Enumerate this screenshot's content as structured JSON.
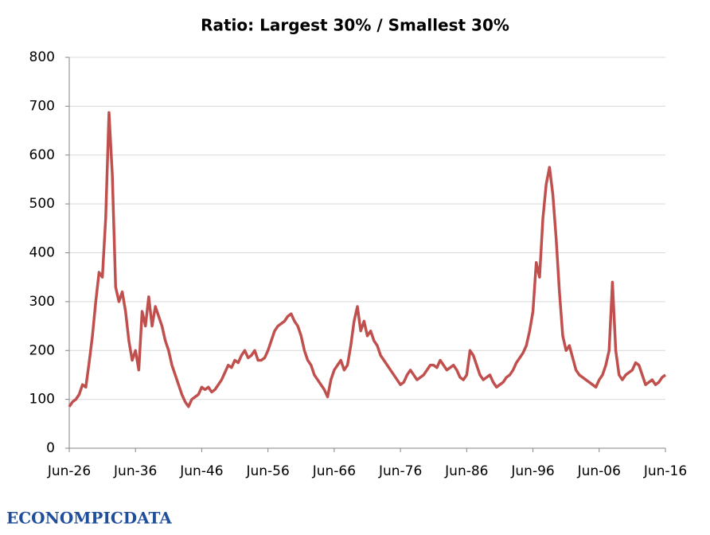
{
  "chart_data": {
    "type": "line",
    "title": "Ratio: Largest 30% / Smallest 30%",
    "watermark": "ECONOMPICDATA",
    "x": [
      "Jun-26",
      "Dec-26",
      "Jun-27",
      "Dec-27",
      "Jun-28",
      "Dec-28",
      "Jun-29",
      "Dec-29",
      "Jun-30",
      "Dec-30",
      "Jun-31",
      "Dec-31",
      "Jun-32",
      "Dec-32",
      "Jun-33",
      "Dec-33",
      "Jun-34",
      "Dec-34",
      "Jun-35",
      "Dec-35",
      "Jun-36",
      "Dec-36",
      "Jun-37",
      "Dec-37",
      "Jun-38",
      "Dec-38",
      "Jun-39",
      "Dec-39",
      "Jun-40",
      "Dec-40",
      "Jun-41",
      "Dec-41",
      "Jun-42",
      "Dec-42",
      "Jun-43",
      "Dec-43",
      "Jun-44",
      "Dec-44",
      "Jun-45",
      "Dec-45",
      "Jun-46",
      "Dec-46",
      "Jun-47",
      "Dec-47",
      "Jun-48",
      "Dec-48",
      "Jun-49",
      "Dec-49",
      "Jun-50",
      "Dec-50",
      "Jun-51",
      "Dec-51",
      "Jun-52",
      "Dec-52",
      "Jun-53",
      "Dec-53",
      "Jun-54",
      "Dec-54",
      "Jun-55",
      "Dec-55",
      "Jun-56",
      "Dec-56",
      "Jun-57",
      "Dec-57",
      "Jun-58",
      "Dec-58",
      "Jun-59",
      "Dec-59",
      "Jun-60",
      "Dec-60",
      "Jun-61",
      "Dec-61",
      "Jun-62",
      "Dec-62",
      "Jun-63",
      "Dec-63",
      "Jun-64",
      "Dec-64",
      "Jun-65",
      "Dec-65",
      "Jun-66",
      "Dec-66",
      "Jun-67",
      "Dec-67",
      "Jun-68",
      "Dec-68",
      "Jun-69",
      "Dec-69",
      "Jun-70",
      "Dec-70",
      "Jun-71",
      "Dec-71",
      "Jun-72",
      "Dec-72",
      "Jun-73",
      "Dec-73",
      "Jun-74",
      "Dec-74",
      "Jun-75",
      "Dec-75",
      "Jun-76",
      "Dec-76",
      "Jun-77",
      "Dec-77",
      "Jun-78",
      "Dec-78",
      "Jun-79",
      "Dec-79",
      "Jun-80",
      "Dec-80",
      "Jun-81",
      "Dec-81",
      "Jun-82",
      "Dec-82",
      "Jun-83",
      "Dec-83",
      "Jun-84",
      "Dec-84",
      "Jun-85",
      "Dec-85",
      "Jun-86",
      "Dec-86",
      "Jun-87",
      "Dec-87",
      "Jun-88",
      "Dec-88",
      "Jun-89",
      "Dec-89",
      "Jun-90",
      "Dec-90",
      "Jun-91",
      "Dec-91",
      "Jun-92",
      "Dec-92",
      "Jun-93",
      "Dec-93",
      "Jun-94",
      "Dec-94",
      "Jun-95",
      "Dec-95",
      "Jun-96",
      "Dec-96",
      "Jun-97",
      "Dec-97",
      "Jun-98",
      "Dec-98",
      "Jun-99",
      "Dec-99",
      "Jun-00",
      "Dec-00",
      "Jun-01",
      "Dec-01",
      "Jun-02",
      "Dec-02",
      "Jun-03",
      "Dec-03",
      "Jun-04",
      "Dec-04",
      "Jun-05",
      "Dec-05",
      "Jun-06",
      "Dec-06",
      "Jun-07",
      "Dec-07",
      "Jun-08",
      "Dec-08",
      "Jun-09",
      "Dec-09",
      "Jun-10",
      "Dec-10",
      "Jun-11",
      "Dec-11",
      "Jun-12",
      "Dec-12",
      "Jun-13",
      "Dec-13",
      "Jun-14",
      "Dec-14",
      "Jun-15",
      "Dec-15",
      "Jun-16"
    ],
    "series": [
      {
        "name": "Ratio",
        "color": "#c0504d",
        "values": [
          85,
          95,
          100,
          110,
          130,
          125,
          175,
          230,
          300,
          360,
          350,
          470,
          687,
          560,
          330,
          300,
          320,
          280,
          220,
          180,
          200,
          160,
          280,
          250,
          310,
          250,
          290,
          270,
          250,
          220,
          200,
          170,
          150,
          130,
          110,
          95,
          85,
          100,
          105,
          110,
          125,
          120,
          125,
          115,
          120,
          130,
          140,
          155,
          170,
          165,
          180,
          175,
          190,
          200,
          185,
          190,
          200,
          180,
          180,
          185,
          200,
          220,
          240,
          250,
          255,
          260,
          270,
          275,
          260,
          250,
          230,
          200,
          180,
          170,
          150,
          140,
          130,
          120,
          105,
          140,
          160,
          170,
          180,
          160,
          170,
          210,
          260,
          290,
          240,
          260,
          230,
          240,
          220,
          210,
          190,
          180,
          170,
          160,
          150,
          140,
          130,
          135,
          150,
          160,
          150,
          140,
          145,
          150,
          160,
          170,
          170,
          165,
          180,
          170,
          160,
          165,
          170,
          160,
          145,
          140,
          150,
          200,
          190,
          170,
          150,
          140,
          145,
          150,
          135,
          125,
          130,
          135,
          145,
          150,
          160,
          175,
          185,
          195,
          210,
          240,
          280,
          380,
          350,
          470,
          540,
          575,
          520,
          430,
          320,
          230,
          200,
          210,
          185,
          160,
          150,
          145,
          140,
          135,
          130,
          125,
          140,
          150,
          170,
          200,
          340,
          200,
          150,
          140,
          150,
          155,
          160,
          175,
          170,
          150,
          130,
          135,
          140,
          130,
          135,
          145,
          150
        ]
      }
    ],
    "xticks": [
      "Jun-26",
      "Jun-36",
      "Jun-46",
      "Jun-56",
      "Jun-66",
      "Jun-76",
      "Jun-86",
      "Jun-96",
      "Jun-06",
      "Jun-16"
    ],
    "ylim": [
      0,
      800
    ],
    "yticks": [
      0,
      100,
      200,
      300,
      400,
      500,
      600,
      700,
      800
    ],
    "grid": true
  }
}
